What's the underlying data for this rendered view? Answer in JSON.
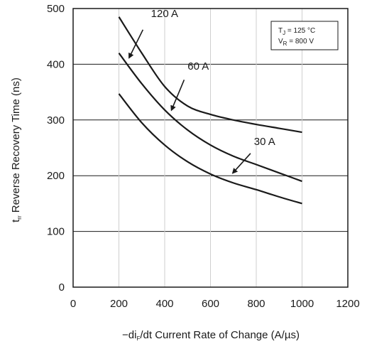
{
  "chart_data": {
    "type": "line",
    "xlabel_parts": [
      "−di",
      "F",
      "/dt Current Rate of Change (A/µs)"
    ],
    "ylabel_parts": [
      "t",
      "rr",
      " Reverse Recovery Time (ns)"
    ],
    "xlim": [
      0,
      1200
    ],
    "ylim": [
      0,
      500
    ],
    "x_ticks": [
      0,
      200,
      400,
      600,
      800,
      1000,
      1200
    ],
    "y_ticks": [
      0,
      100,
      200,
      300,
      400,
      500
    ],
    "grid": {
      "horizontal": true,
      "vertical_lines_at": [
        200,
        400,
        600,
        800,
        1000
      ]
    },
    "conditions": {
      "line1_parts": [
        "T",
        "J",
        " = 125 °C"
      ],
      "line2_parts": [
        "V",
        "R",
        " = 800 V"
      ],
      "placement": "top-right"
    },
    "series": [
      {
        "name": "120 A",
        "x": [
          200,
          300,
          400,
          500,
          600,
          700,
          800,
          900,
          1000
        ],
        "y": [
          485,
          420,
          360,
          325,
          310,
          300,
          292,
          285,
          278
        ]
      },
      {
        "name": "60 A",
        "x": [
          200,
          300,
          400,
          500,
          600,
          700,
          800,
          900,
          1000
        ],
        "y": [
          420,
          365,
          318,
          282,
          255,
          235,
          220,
          205,
          190
        ]
      },
      {
        "name": "30 A",
        "x": [
          200,
          300,
          400,
          500,
          600,
          700,
          800,
          900,
          1000
        ],
        "y": [
          347,
          295,
          255,
          225,
          203,
          187,
          175,
          162,
          150
        ]
      }
    ],
    "annotations": [
      {
        "series": "120 A",
        "label": "120 A",
        "text_at": [
          340,
          485
        ],
        "arrow_from": [
          305,
          462
        ],
        "arrow_to": [
          245,
          412
        ]
      },
      {
        "series": "60 A",
        "label": "60 A",
        "text_at": [
          500,
          390
        ],
        "arrow_from": [
          485,
          372
        ],
        "arrow_to": [
          430,
          318
        ]
      },
      {
        "series": "30 A",
        "label": "30 A",
        "text_at": [
          790,
          255
        ],
        "arrow_from": [
          775,
          240
        ],
        "arrow_to": [
          698,
          205
        ]
      }
    ]
  }
}
